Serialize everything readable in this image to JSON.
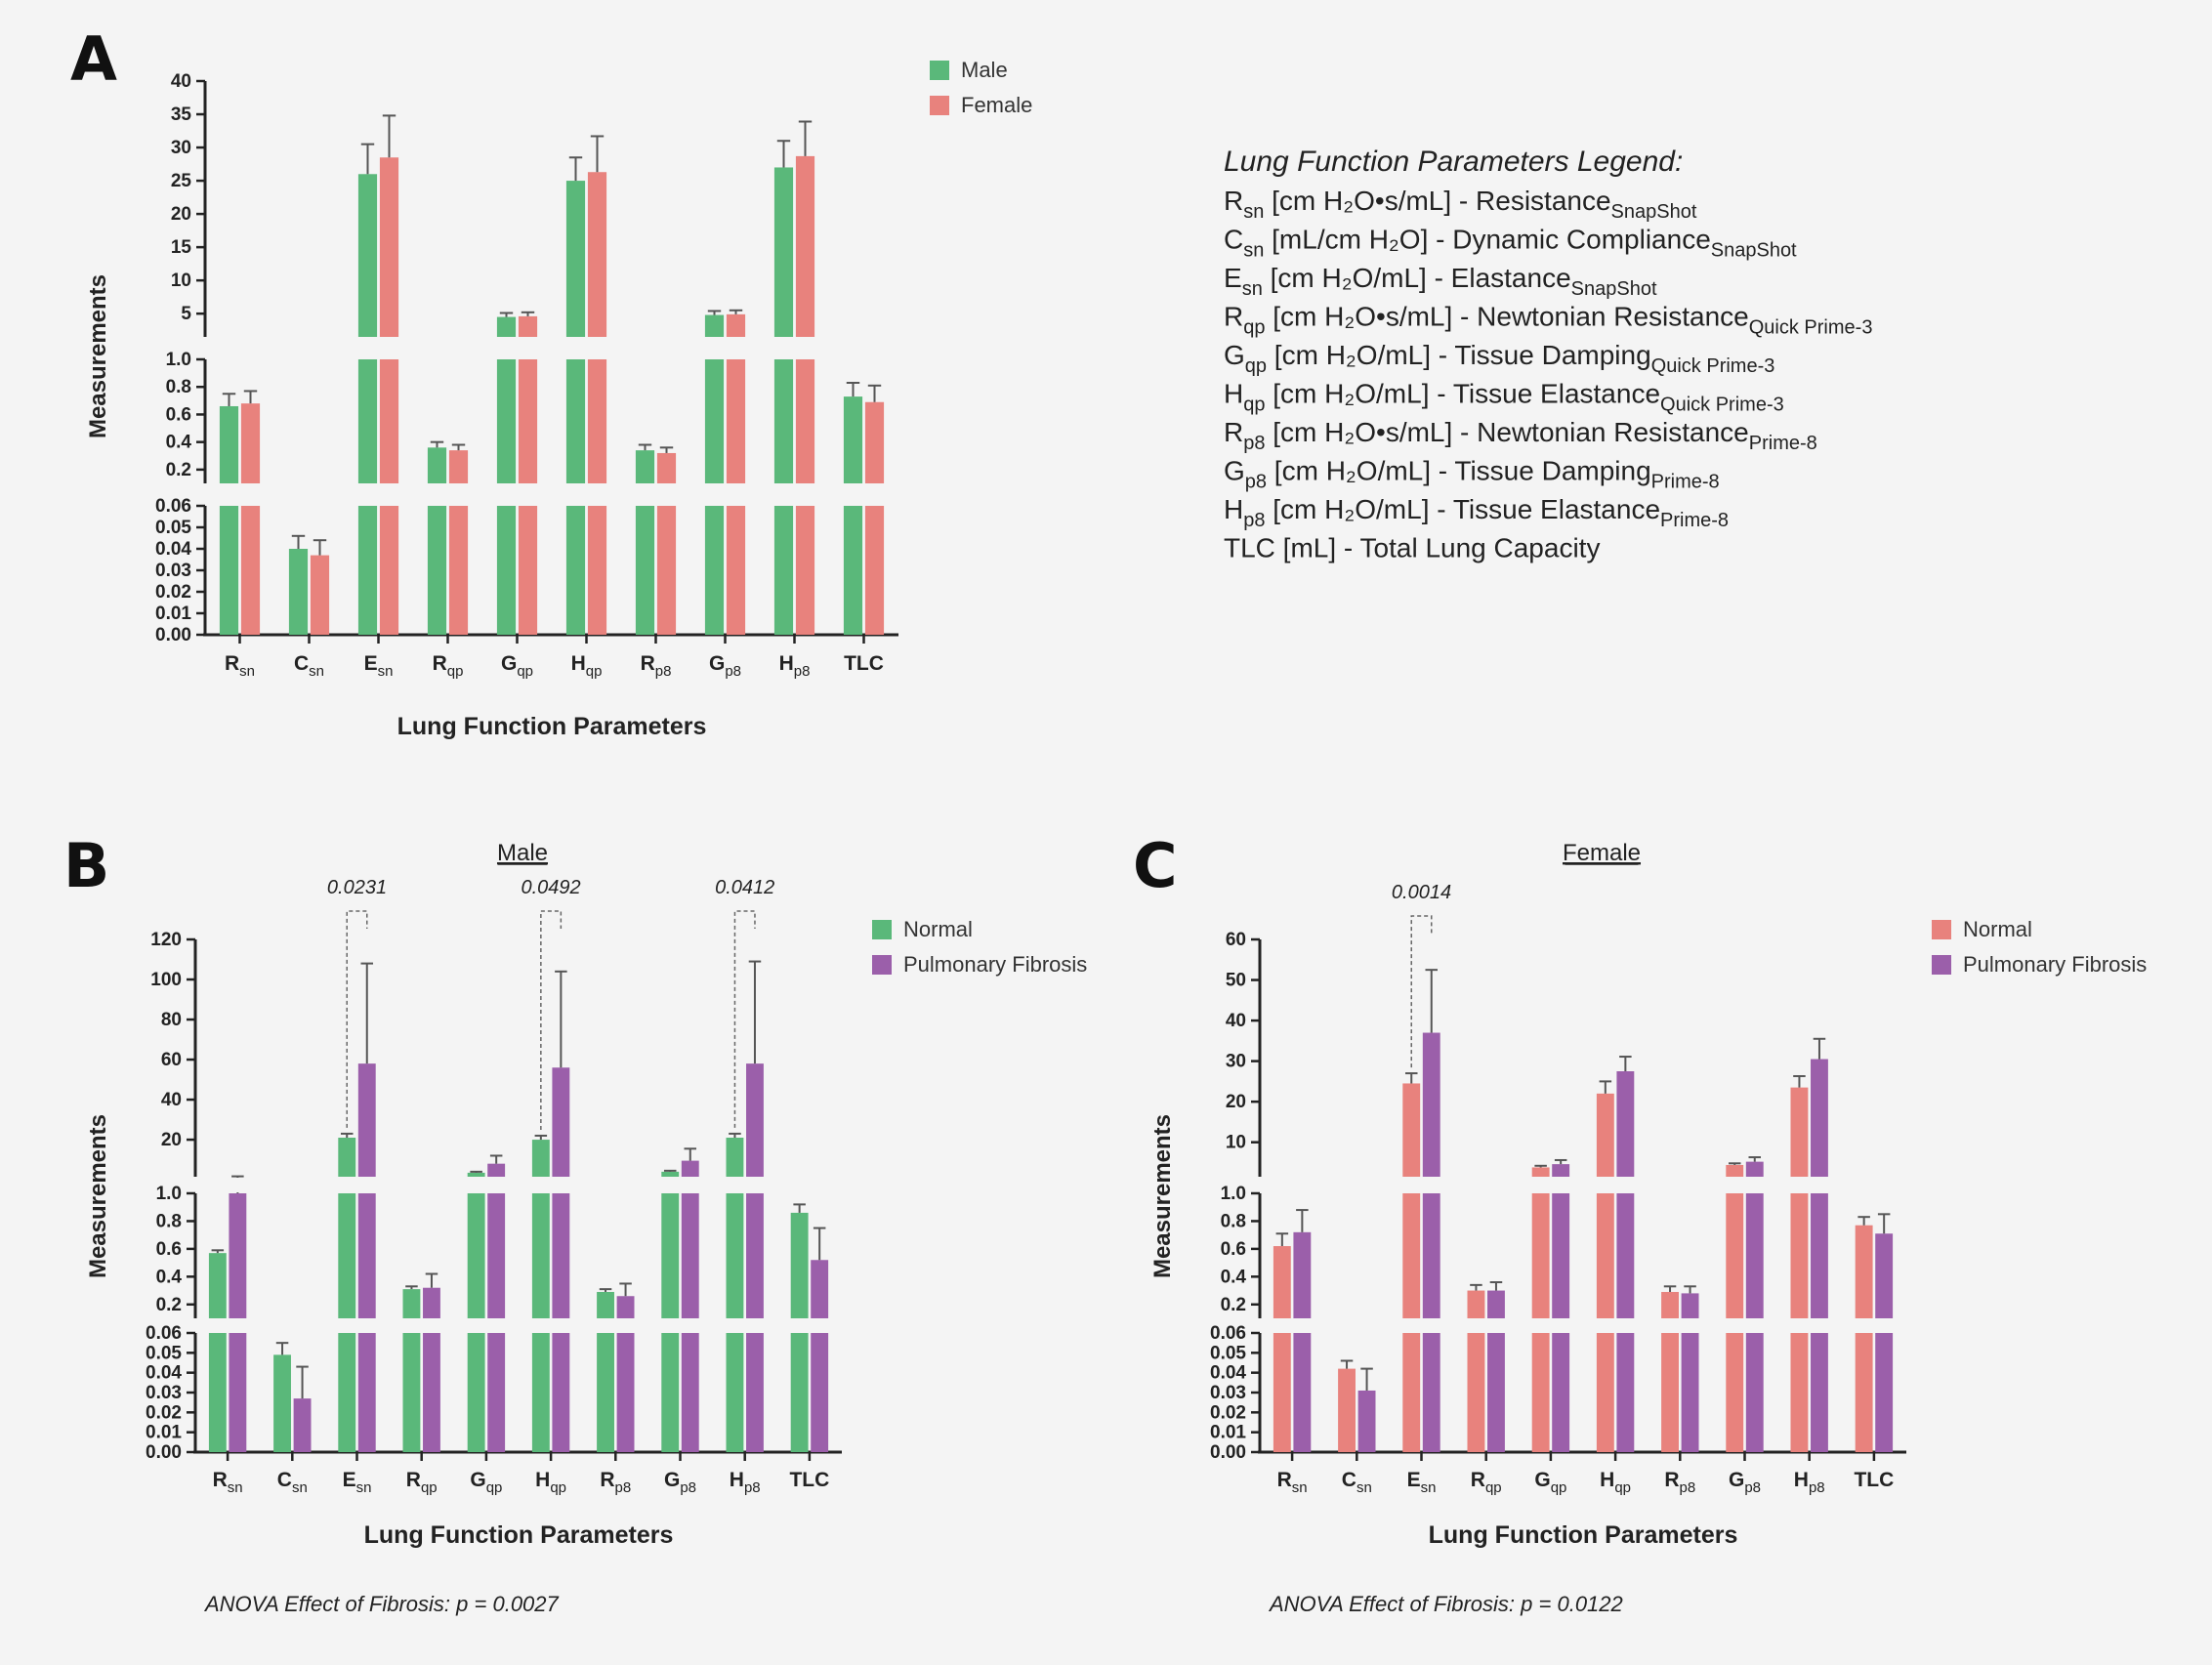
{
  "colors": {
    "male": "#5ab87a",
    "female": "#e8827d",
    "normal_male": "#5ab87a",
    "normal_female": "#e8827d",
    "fibrosis": "#9b5faa",
    "axis": "#222222",
    "error": "#444444"
  },
  "params_legend": {
    "title": "Lung Function Parameters Legend:",
    "items": [
      {
        "sym": "R",
        "sub": "sn",
        "text": " [cm H₂O•s/mL] - Resistance",
        "tag": "SnapShot"
      },
      {
        "sym": "C",
        "sub": "sn",
        "text": " [mL/cm H₂O] -  Dynamic Compliance",
        "tag": "SnapShot"
      },
      {
        "sym": "E",
        "sub": "sn",
        "text": " [cm H₂O/mL] - Elastance",
        "tag": "SnapShot"
      },
      {
        "sym": "R",
        "sub": "qp",
        "text": " [cm H₂O•s/mL] - Newtonian Resistance",
        "tag": "Quick Prime-3"
      },
      {
        "sym": "G",
        "sub": "qp",
        "text": " [cm H₂O/mL] - Tissue Damping",
        "tag": "Quick Prime-3"
      },
      {
        "sym": "H",
        "sub": "qp",
        "text": " [cm H₂O/mL] - Tissue Elastance",
        "tag": "Quick Prime-3"
      },
      {
        "sym": "R",
        "sub": "p8",
        "text": " [cm H₂O•s/mL] - Newtonian Resistance",
        "tag": "Prime-8"
      },
      {
        "sym": "G",
        "sub": "p8",
        "text": " [cm H₂O/mL] - Tissue Damping",
        "tag": "Prime-8"
      },
      {
        "sym": "H",
        "sub": "p8",
        "text": " [cm H₂O/mL] - Tissue Elastance",
        "tag": "Prime-8"
      },
      {
        "sym": "TLC",
        "sub": "",
        "text": " [mL] - Total Lung Capacity",
        "tag": ""
      }
    ]
  },
  "chart_data": [
    {
      "panel": "A",
      "type": "bar",
      "title": "",
      "xlabel": "Lung Function Parameters",
      "ylabel": "Measurements",
      "categories": [
        {
          "sym": "R",
          "sub": "sn"
        },
        {
          "sym": "C",
          "sub": "sn"
        },
        {
          "sym": "E",
          "sub": "sn"
        },
        {
          "sym": "R",
          "sub": "qp"
        },
        {
          "sym": "G",
          "sub": "qp"
        },
        {
          "sym": "H",
          "sub": "qp"
        },
        {
          "sym": "R",
          "sub": "p8"
        },
        {
          "sym": "G",
          "sub": "p8"
        },
        {
          "sym": "H",
          "sub": "p8"
        },
        {
          "sym": "TLC",
          "sub": ""
        }
      ],
      "series": [
        {
          "name": "Male",
          "color_key": "male",
          "values": [
            0.66,
            0.04,
            26,
            0.36,
            4.5,
            25,
            0.34,
            4.8,
            27,
            0.73
          ],
          "errors": [
            0.09,
            0.006,
            4.5,
            0.04,
            0.6,
            3.5,
            0.04,
            0.6,
            4.0,
            0.1
          ]
        },
        {
          "name": "Female",
          "color_key": "female",
          "values": [
            0.68,
            0.037,
            28.5,
            0.34,
            4.6,
            26.3,
            0.32,
            4.9,
            28.7,
            0.69
          ],
          "errors": [
            0.09,
            0.007,
            6.3,
            0.04,
            0.6,
            5.4,
            0.04,
            0.6,
            5.2,
            0.12
          ]
        }
      ],
      "segments": [
        {
          "range": [
            0,
            0.06
          ],
          "ticks": [
            "0.00",
            "0.01",
            "0.02",
            "0.03",
            "0.04",
            "0.05",
            "0.06"
          ]
        },
        {
          "range": [
            0.1,
            1.0
          ],
          "ticks": [
            "0.2",
            "0.4",
            "0.6",
            "0.8",
            "1.0"
          ]
        },
        {
          "range": [
            1.5,
            40
          ],
          "ticks": [
            "5",
            "10",
            "15",
            "20",
            "25",
            "30",
            "35",
            "40"
          ]
        }
      ],
      "legend_placement": "top-right",
      "annotations": []
    },
    {
      "panel": "B",
      "type": "bar",
      "title": "Male",
      "xlabel": "Lung Function Parameters",
      "ylabel": "Measurements",
      "categories": [
        {
          "sym": "R",
          "sub": "sn"
        },
        {
          "sym": "C",
          "sub": "sn"
        },
        {
          "sym": "E",
          "sub": "sn"
        },
        {
          "sym": "R",
          "sub": "qp"
        },
        {
          "sym": "G",
          "sub": "qp"
        },
        {
          "sym": "H",
          "sub": "qp"
        },
        {
          "sym": "R",
          "sub": "p8"
        },
        {
          "sym": "G",
          "sub": "p8"
        },
        {
          "sym": "H",
          "sub": "p8"
        },
        {
          "sym": "TLC",
          "sub": ""
        }
      ],
      "series": [
        {
          "name": "Normal",
          "color_key": "normal_male",
          "values": [
            0.57,
            0.049,
            21,
            0.31,
            3.5,
            20,
            0.29,
            4.0,
            21,
            0.86
          ],
          "errors": [
            0.02,
            0.006,
            2,
            0.02,
            0.5,
            2,
            0.02,
            0.5,
            2,
            0.06
          ]
        },
        {
          "name": "Pulmonary Fibrosis",
          "color_key": "fibrosis",
          "values": [
            1.2,
            0.027,
            58,
            0.32,
            8,
            56,
            0.26,
            9.5,
            58,
            0.52
          ],
          "errors": [
            0.5,
            0.016,
            50,
            0.1,
            4,
            48,
            0.09,
            6,
            51,
            0.23
          ]
        }
      ],
      "segments": [
        {
          "range": [
            0,
            0.06
          ],
          "ticks": [
            "0.00",
            "0.01",
            "0.02",
            "0.03",
            "0.04",
            "0.05",
            "0.06"
          ]
        },
        {
          "range": [
            0.1,
            1.0
          ],
          "ticks": [
            "0.2",
            "0.4",
            "0.6",
            "0.8",
            "1.0"
          ]
        },
        {
          "range": [
            1.5,
            120
          ],
          "ticks": [
            "20",
            "40",
            "60",
            "80",
            "100",
            "120"
          ],
          "tick_values": [
            20,
            40,
            60,
            80,
            100,
            120
          ]
        }
      ],
      "legend_placement": "top-right",
      "annotations": [
        {
          "category_index": 2,
          "label": "0.0231"
        },
        {
          "category_index": 5,
          "label": "0.0492"
        },
        {
          "category_index": 8,
          "label": "0.0412"
        }
      ],
      "anova": "ANOVA Effect of Fibrosis: p = 0.0027"
    },
    {
      "panel": "C",
      "type": "bar",
      "title": "Female",
      "xlabel": "Lung Function Parameters",
      "ylabel": "Measurements",
      "categories": [
        {
          "sym": "R",
          "sub": "sn"
        },
        {
          "sym": "C",
          "sub": "sn"
        },
        {
          "sym": "E",
          "sub": "sn"
        },
        {
          "sym": "R",
          "sub": "qp"
        },
        {
          "sym": "G",
          "sub": "qp"
        },
        {
          "sym": "H",
          "sub": "qp"
        },
        {
          "sym": "R",
          "sub": "p8"
        },
        {
          "sym": "G",
          "sub": "p8"
        },
        {
          "sym": "H",
          "sub": "p8"
        },
        {
          "sym": "TLC",
          "sub": ""
        }
      ],
      "series": [
        {
          "name": "Normal",
          "color_key": "normal_female",
          "values": [
            0.62,
            0.042,
            24.5,
            0.3,
            3.8,
            22,
            0.29,
            4.4,
            23.5,
            0.77
          ],
          "errors": [
            0.09,
            0.004,
            2.5,
            0.04,
            0.4,
            3,
            0.04,
            0.4,
            2.8,
            0.06
          ]
        },
        {
          "name": "Pulmonary Fibrosis",
          "color_key": "fibrosis",
          "values": [
            0.72,
            0.031,
            37,
            0.3,
            4.6,
            27.5,
            0.28,
            5.2,
            30.5,
            0.71
          ],
          "errors": [
            0.16,
            0.011,
            15.5,
            0.06,
            1.0,
            3.6,
            0.05,
            1.1,
            5,
            0.14
          ]
        }
      ],
      "segments": [
        {
          "range": [
            0,
            0.06
          ],
          "ticks": [
            "0.00",
            "0.01",
            "0.02",
            "0.03",
            "0.04",
            "0.05",
            "0.06"
          ]
        },
        {
          "range": [
            0.1,
            1.0
          ],
          "ticks": [
            "0.2",
            "0.4",
            "0.6",
            "0.8",
            "1.0"
          ]
        },
        {
          "range": [
            1.5,
            60
          ],
          "ticks": [
            "10",
            "20",
            "30",
            "40",
            "50",
            "60"
          ],
          "tick_values": [
            10,
            20,
            30,
            40,
            50,
            60
          ]
        }
      ],
      "legend_placement": "top-right",
      "annotations": [
        {
          "category_index": 2,
          "label": "0.0014"
        }
      ],
      "anova": "ANOVA Effect of Fibrosis: p = 0.0122"
    }
  ]
}
